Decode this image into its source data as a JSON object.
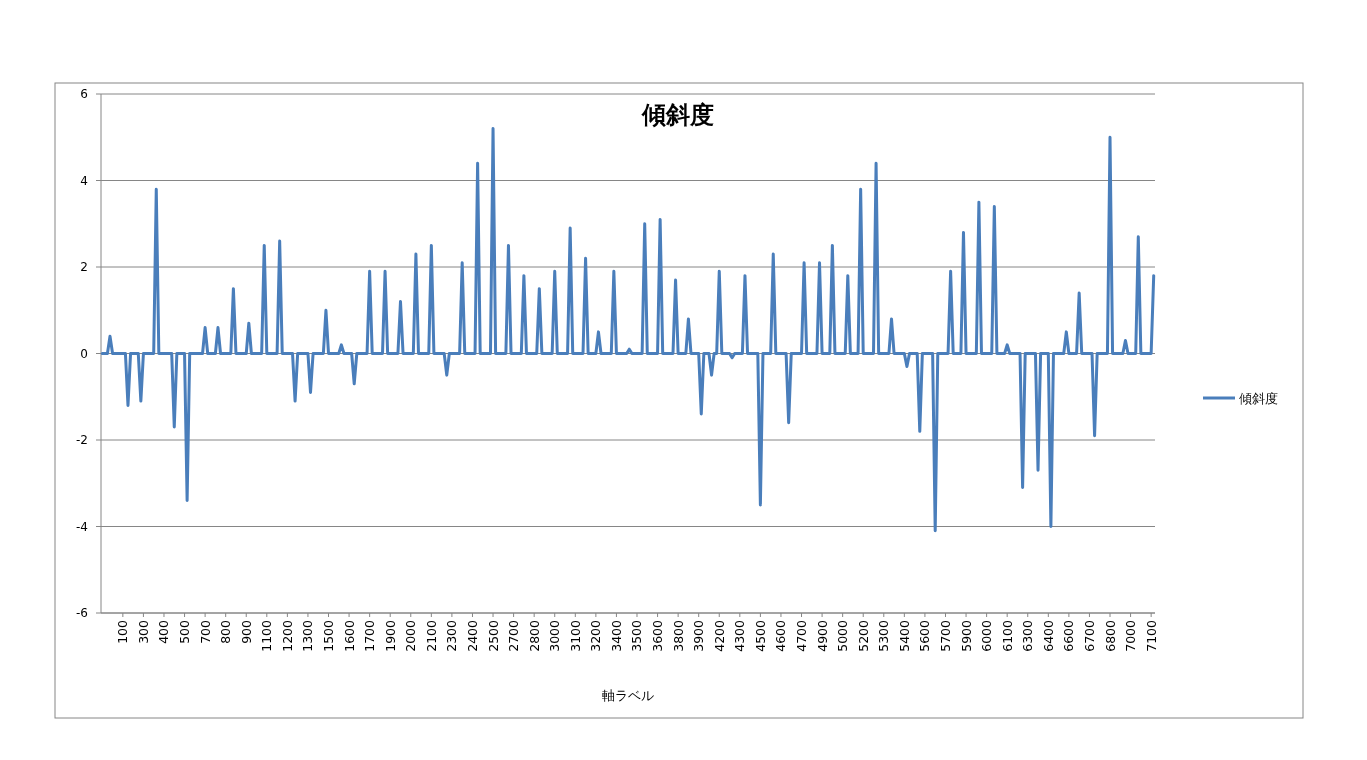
{
  "chart_data": {
    "type": "line",
    "title": "傾斜度",
    "xlabel": "軸ラベル",
    "categories": [
      null,
      null,
      null,
      null,
      null,
      null,
      null,
      null,
      "100",
      null,
      null,
      null,
      null,
      null,
      null,
      null,
      "300",
      null,
      null,
      null,
      null,
      null,
      null,
      null,
      "400",
      null,
      null,
      null,
      null,
      null,
      null,
      null,
      "500",
      null,
      null,
      null,
      null,
      null,
      null,
      null,
      "700",
      null,
      null,
      null,
      null,
      null,
      null,
      null,
      "800",
      null,
      null,
      null,
      null,
      null,
      null,
      null,
      "900",
      null,
      null,
      null,
      null,
      null,
      null,
      null,
      "1100",
      null,
      null,
      null,
      null,
      null,
      null,
      null,
      "1200",
      null,
      null,
      null,
      null,
      null,
      null,
      null,
      "1300",
      null,
      null,
      null,
      null,
      null,
      null,
      null,
      "1500",
      null,
      null,
      null,
      null,
      null,
      null,
      null,
      "1600",
      null,
      null,
      null,
      null,
      null,
      null,
      null,
      "1700",
      null,
      null,
      null,
      null,
      null,
      null,
      null,
      "1900",
      null,
      null,
      null,
      null,
      null,
      null,
      null,
      "2000",
      null,
      null,
      null,
      null,
      null,
      null,
      null,
      "2100",
      null,
      null,
      null,
      null,
      null,
      null,
      null,
      "2300",
      null,
      null,
      null,
      null,
      null,
      null,
      null,
      "2400",
      null,
      null,
      null,
      null,
      null,
      null,
      null,
      "2500",
      null,
      null,
      null,
      null,
      null,
      null,
      null,
      "2700",
      null,
      null,
      null,
      null,
      null,
      null,
      null,
      "2800",
      null,
      null,
      null,
      null,
      null,
      null,
      null,
      "3000",
      null,
      null,
      null,
      null,
      null,
      null,
      null,
      "3100",
      null,
      null,
      null,
      null,
      null,
      null,
      null,
      "3200",
      null,
      null,
      null,
      null,
      null,
      null,
      null,
      "3400",
      null,
      null,
      null,
      null,
      null,
      null,
      null,
      "3500",
      null,
      null,
      null,
      null,
      null,
      null,
      null,
      "3600",
      null,
      null,
      null,
      null,
      null,
      null,
      null,
      "3800",
      null,
      null,
      null,
      null,
      null,
      null,
      null,
      "3900",
      null,
      null,
      null,
      null,
      null,
      null,
      null,
      "4200",
      null,
      null,
      null,
      null,
      null,
      null,
      null,
      "4300",
      null,
      null,
      null,
      null,
      null,
      null,
      null,
      "4500",
      null,
      null,
      null,
      null,
      null,
      null,
      null,
      "4600",
      null,
      null,
      null,
      null,
      null,
      null,
      null,
      "4700",
      null,
      null,
      null,
      null,
      null,
      null,
      null,
      "4900",
      null,
      null,
      null,
      null,
      null,
      null,
      null,
      "5000",
      null,
      null,
      null,
      null,
      null,
      null,
      null,
      "5200",
      null,
      null,
      null,
      null,
      null,
      null,
      null,
      "5300",
      null,
      null,
      null,
      null,
      null,
      null,
      null,
      "5400",
      null,
      null,
      null,
      null,
      null,
      null,
      null,
      "5600",
      null,
      null,
      null,
      null,
      null,
      null,
      null,
      "5700",
      null,
      null,
      null,
      null,
      null,
      null,
      null,
      "5900",
      null,
      null,
      null,
      null,
      null,
      null,
      null,
      "6000",
      null,
      null,
      null,
      null,
      null,
      null,
      null,
      "6100",
      null,
      null,
      null,
      null,
      null,
      null,
      null,
      "6300",
      null,
      null,
      null,
      null,
      null,
      null,
      null,
      "6400",
      null,
      null,
      null,
      null,
      null,
      null,
      null,
      "6600",
      null,
      null,
      null,
      null,
      null,
      null,
      null,
      "6700",
      null,
      null,
      null,
      null,
      null,
      null,
      null,
      "6800",
      null,
      null,
      null,
      null,
      null,
      null,
      null,
      "7000",
      null,
      null,
      null,
      null,
      null,
      null,
      null,
      "7100",
      null
    ],
    "series": [
      {
        "name": "傾斜度",
        "color": "#4a7ebb",
        "values": [
          0,
          0,
          0,
          0.4,
          0,
          0,
          0,
          0,
          0,
          0,
          -1.2,
          0,
          0,
          0,
          0,
          -1.1,
          0,
          0,
          0,
          0,
          0,
          3.8,
          0,
          0,
          0,
          0,
          0,
          0,
          -1.7,
          0,
          0,
          0,
          0,
          -3.4,
          0,
          0,
          0,
          0,
          0,
          0,
          0.6,
          0,
          0,
          0,
          0,
          0.6,
          0,
          0,
          0,
          0,
          0,
          1.5,
          0,
          0,
          0,
          0,
          0,
          0.7,
          0,
          0,
          0,
          0,
          0,
          2.5,
          0,
          0,
          0,
          0,
          0,
          2.6,
          0,
          0,
          0,
          0,
          0,
          -1.1,
          0,
          0,
          0,
          0,
          0,
          -0.9,
          0,
          0,
          0,
          0,
          0,
          1.0,
          0,
          0,
          0,
          0,
          0,
          0.2,
          0,
          0,
          0,
          0,
          -0.7,
          0,
          0,
          0,
          0,
          0,
          1.9,
          0,
          0,
          0,
          0,
          0,
          1.9,
          0,
          0,
          0,
          0,
          0,
          1.2,
          0,
          0,
          0,
          0,
          0,
          2.3,
          0,
          0,
          0,
          0,
          0,
          2.5,
          0,
          0,
          0,
          0,
          0,
          -0.5,
          0,
          0,
          0,
          0,
          0,
          2.1,
          0,
          0,
          0,
          0,
          0,
          4.4,
          0,
          0,
          0,
          0,
          0,
          5.2,
          0,
          0,
          0,
          0,
          0,
          2.5,
          0,
          0,
          0,
          0,
          0,
          1.8,
          0,
          0,
          0,
          0,
          0,
          1.5,
          0,
          0,
          0,
          0,
          0,
          1.9,
          0,
          0,
          0,
          0,
          0,
          2.9,
          0,
          0,
          0,
          0,
          0,
          2.2,
          0,
          0,
          0,
          0,
          0.5,
          0,
          0,
          0,
          0,
          0,
          1.9,
          0,
          0,
          0,
          0,
          0,
          0.1,
          0,
          0,
          0,
          0,
          0,
          3.0,
          0,
          0,
          0,
          0,
          0,
          3.1,
          0,
          0,
          0,
          0,
          0,
          1.7,
          0,
          0,
          0,
          0,
          0.8,
          0,
          0,
          0,
          0,
          -1.4,
          0,
          0,
          0,
          -0.5,
          0,
          0,
          1.9,
          0,
          0,
          0,
          0,
          -0.1,
          0,
          0,
          0,
          0,
          1.8,
          0,
          0,
          0,
          0,
          0,
          -3.5,
          0,
          0,
          0,
          0,
          2.3,
          0,
          0,
          0,
          0,
          0,
          -1.6,
          0,
          0,
          0,
          0,
          0,
          2.1,
          0,
          0,
          0,
          0,
          0,
          2.1,
          0,
          0,
          0,
          0,
          2.5,
          0,
          0,
          0,
          0,
          0,
          1.8,
          0,
          0,
          0,
          0,
          3.8,
          0,
          0,
          0,
          0,
          0,
          4.4,
          0,
          0,
          0,
          0,
          0,
          0.8,
          0,
          0,
          0,
          0,
          0,
          -0.3,
          0,
          0,
          0,
          0,
          -1.8,
          0,
          0,
          0,
          0,
          0,
          -4.1,
          0,
          0,
          0,
          0,
          0,
          1.9,
          0,
          0,
          0,
          0,
          2.8,
          0,
          0,
          0,
          0,
          0,
          3.5,
          0,
          0,
          0,
          0,
          0,
          3.4,
          0,
          0,
          0,
          0,
          0.2,
          0,
          0,
          0,
          0,
          0,
          -3.1,
          0,
          0,
          0,
          0,
          0,
          -2.7,
          0,
          0,
          0,
          0,
          -4.0,
          0,
          0,
          0,
          0,
          0,
          0.5,
          0,
          0,
          0,
          0,
          1.4,
          0,
          0,
          0,
          0,
          0,
          -1.9,
          0,
          0,
          0,
          0,
          0,
          5.0,
          0,
          0,
          0,
          0,
          0,
          0.3,
          0,
          0,
          0,
          0,
          2.7,
          0,
          0,
          0,
          0,
          0,
          1.8
        ]
      }
    ],
    "ylim": [
      -6,
      6
    ],
    "yticks": [
      -6,
      -4,
      -2,
      0,
      2,
      4,
      6
    ],
    "grid": "y",
    "legend": "right"
  }
}
